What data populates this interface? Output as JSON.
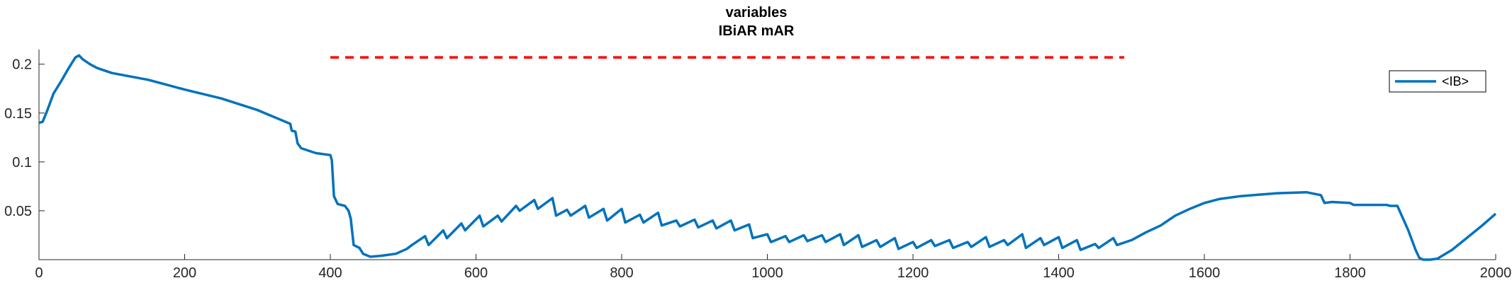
{
  "chart_data": {
    "type": "line",
    "title": [
      "variables",
      "IBiAR mAR"
    ],
    "xlabel": "",
    "ylabel": "",
    "xlim": [
      0,
      2000
    ],
    "ylim": [
      0,
      0.215
    ],
    "xticks": [
      0,
      200,
      400,
      600,
      800,
      1000,
      1200,
      1400,
      1600,
      1800,
      2000
    ],
    "yticks": [
      0.05,
      0.1,
      0.15,
      0.2
    ],
    "ytick_labels": [
      "0.05",
      "0.1",
      "0.15",
      "0.2"
    ],
    "grid": false,
    "legend_position": "top-right",
    "series": [
      {
        "name": "<IB>",
        "color": "#0072BD",
        "style": "solid",
        "points": [
          [
            0,
            0.14
          ],
          [
            5,
            0.141
          ],
          [
            10,
            0.15
          ],
          [
            15,
            0.16
          ],
          [
            20,
            0.17
          ],
          [
            30,
            0.182
          ],
          [
            40,
            0.195
          ],
          [
            50,
            0.207
          ],
          [
            55,
            0.209
          ],
          [
            60,
            0.205
          ],
          [
            70,
            0.2
          ],
          [
            80,
            0.196
          ],
          [
            100,
            0.191
          ],
          [
            150,
            0.184
          ],
          [
            180,
            0.178
          ],
          [
            200,
            0.174
          ],
          [
            250,
            0.165
          ],
          [
            300,
            0.153
          ],
          [
            345,
            0.139
          ],
          [
            347,
            0.132
          ],
          [
            352,
            0.131
          ],
          [
            355,
            0.119
          ],
          [
            360,
            0.114
          ],
          [
            380,
            0.109
          ],
          [
            400,
            0.107
          ],
          [
            402,
            0.102
          ],
          [
            405,
            0.065
          ],
          [
            410,
            0.057
          ],
          [
            420,
            0.055
          ],
          [
            425,
            0.05
          ],
          [
            428,
            0.042
          ],
          [
            432,
            0.015
          ],
          [
            440,
            0.012
          ],
          [
            445,
            0.006
          ],
          [
            455,
            0.003
          ],
          [
            470,
            0.004
          ],
          [
            490,
            0.006
          ],
          [
            505,
            0.011
          ],
          [
            512,
            0.015
          ],
          [
            530,
            0.024
          ],
          [
            535,
            0.015
          ],
          [
            555,
            0.03
          ],
          [
            560,
            0.022
          ],
          [
            580,
            0.037
          ],
          [
            585,
            0.03
          ],
          [
            605,
            0.045
          ],
          [
            610,
            0.034
          ],
          [
            630,
            0.045
          ],
          [
            635,
            0.039
          ],
          [
            655,
            0.055
          ],
          [
            660,
            0.05
          ],
          [
            680,
            0.061
          ],
          [
            685,
            0.052
          ],
          [
            705,
            0.063
          ],
          [
            710,
            0.045
          ],
          [
            725,
            0.051
          ],
          [
            730,
            0.045
          ],
          [
            750,
            0.055
          ],
          [
            755,
            0.043
          ],
          [
            775,
            0.052
          ],
          [
            780,
            0.04
          ],
          [
            800,
            0.052
          ],
          [
            805,
            0.038
          ],
          [
            825,
            0.046
          ],
          [
            830,
            0.038
          ],
          [
            850,
            0.048
          ],
          [
            855,
            0.035
          ],
          [
            875,
            0.04
          ],
          [
            880,
            0.034
          ],
          [
            900,
            0.041
          ],
          [
            905,
            0.033
          ],
          [
            925,
            0.04
          ],
          [
            930,
            0.032
          ],
          [
            950,
            0.04
          ],
          [
            955,
            0.03
          ],
          [
            975,
            0.036
          ],
          [
            980,
            0.022
          ],
          [
            1000,
            0.026
          ],
          [
            1005,
            0.018
          ],
          [
            1025,
            0.024
          ],
          [
            1030,
            0.018
          ],
          [
            1050,
            0.025
          ],
          [
            1055,
            0.019
          ],
          [
            1075,
            0.025
          ],
          [
            1080,
            0.018
          ],
          [
            1100,
            0.026
          ],
          [
            1105,
            0.015
          ],
          [
            1125,
            0.025
          ],
          [
            1130,
            0.013
          ],
          [
            1150,
            0.02
          ],
          [
            1155,
            0.013
          ],
          [
            1175,
            0.022
          ],
          [
            1180,
            0.011
          ],
          [
            1200,
            0.018
          ],
          [
            1205,
            0.012
          ],
          [
            1225,
            0.02
          ],
          [
            1230,
            0.014
          ],
          [
            1250,
            0.02
          ],
          [
            1255,
            0.012
          ],
          [
            1275,
            0.018
          ],
          [
            1280,
            0.013
          ],
          [
            1300,
            0.023
          ],
          [
            1305,
            0.013
          ],
          [
            1325,
            0.02
          ],
          [
            1330,
            0.015
          ],
          [
            1350,
            0.026
          ],
          [
            1355,
            0.012
          ],
          [
            1375,
            0.022
          ],
          [
            1380,
            0.015
          ],
          [
            1400,
            0.023
          ],
          [
            1405,
            0.012
          ],
          [
            1425,
            0.02
          ],
          [
            1430,
            0.01
          ],
          [
            1450,
            0.016
          ],
          [
            1455,
            0.012
          ],
          [
            1475,
            0.022
          ],
          [
            1480,
            0.015
          ],
          [
            1500,
            0.02
          ],
          [
            1520,
            0.028
          ],
          [
            1540,
            0.035
          ],
          [
            1560,
            0.045
          ],
          [
            1580,
            0.052
          ],
          [
            1600,
            0.058
          ],
          [
            1620,
            0.062
          ],
          [
            1650,
            0.065
          ],
          [
            1700,
            0.068
          ],
          [
            1740,
            0.069
          ],
          [
            1760,
            0.066
          ],
          [
            1765,
            0.058
          ],
          [
            1775,
            0.059
          ],
          [
            1800,
            0.058
          ],
          [
            1805,
            0.056
          ],
          [
            1850,
            0.056
          ],
          [
            1855,
            0.055
          ],
          [
            1865,
            0.055
          ],
          [
            1880,
            0.03
          ],
          [
            1890,
            0.01
          ],
          [
            1895,
            0.002
          ],
          [
            1900,
            0
          ],
          [
            1910,
            0
          ],
          [
            1920,
            0.001
          ],
          [
            1940,
            0.01
          ],
          [
            1960,
            0.022
          ],
          [
            1980,
            0.034
          ],
          [
            2000,
            0.047
          ]
        ]
      },
      {
        "name": "",
        "color": "#FF0000",
        "style": "dashed",
        "points": [
          [
            400,
            0.207
          ],
          [
            1490,
            0.207
          ]
        ]
      }
    ]
  }
}
